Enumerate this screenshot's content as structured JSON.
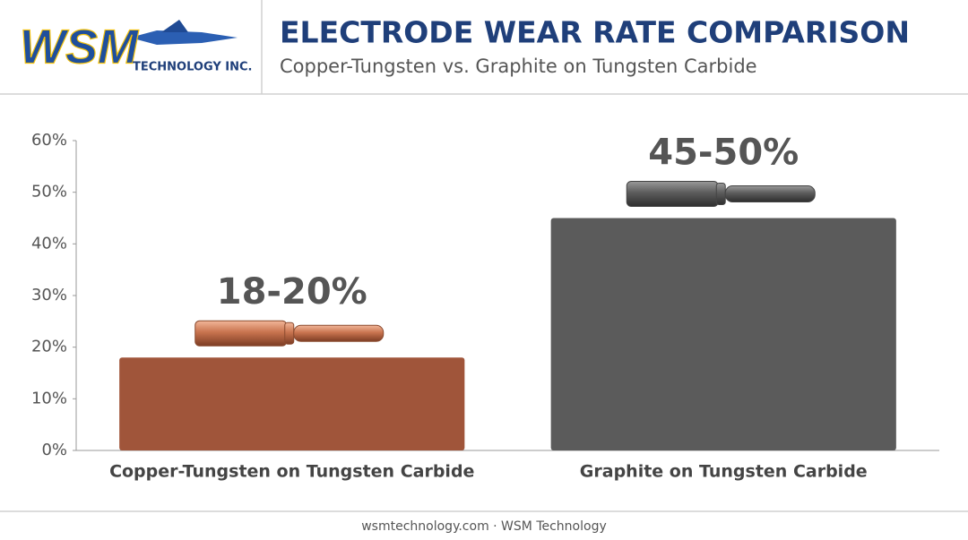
{
  "header": {
    "logo": "WSM",
    "logo_sub": "TECHNOLOGY INC.",
    "title": "ELECTRODE WEAR RATE COMPARISON",
    "subtitle": "Copper-Tungsten vs. Graphite on Tungsten Carbide"
  },
  "chart_data": {
    "type": "bar",
    "categories": [
      "Copper-Tungsten on Tungsten Carbide",
      "Graphite on Tungsten Carbide"
    ],
    "values": [
      18,
      45
    ],
    "value_labels": [
      "18-20%",
      "45-50%"
    ],
    "colors": [
      "#a0553a",
      "#5b5b5b"
    ],
    "ylim": [
      0,
      60
    ],
    "yticks": [
      {
        "value": 0,
        "label": "0%"
      },
      {
        "value": 10,
        "label": "10%"
      },
      {
        "value": 20,
        "label": "20%"
      },
      {
        "value": 30,
        "label": "30%"
      },
      {
        "value": 40,
        "label": "40%"
      },
      {
        "value": 50,
        "label": "50%"
      },
      {
        "value": 60,
        "label": "60%"
      }
    ],
    "grid": false
  },
  "footer": "wsmtechnology.com · WSM Technology"
}
